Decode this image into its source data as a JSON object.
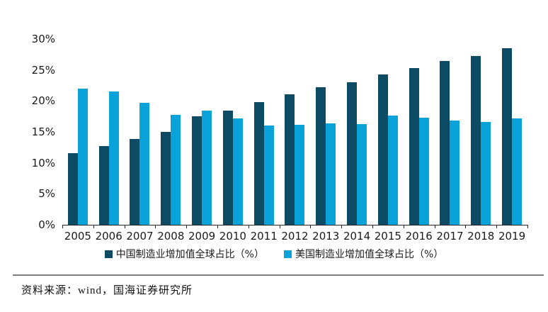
{
  "chart_data": {
    "type": "bar",
    "title": "",
    "xlabel": "",
    "ylabel": "",
    "categories": [
      "2005",
      "2006",
      "2007",
      "2008",
      "2009",
      "2010",
      "2011",
      "2012",
      "2013",
      "2014",
      "2015",
      "2016",
      "2017",
      "2018",
      "2019"
    ],
    "series": [
      {
        "id": "china",
        "name": "中国制造业增加值全球占比（%）",
        "color": "#0d4a63",
        "values": [
          11.6,
          12.7,
          13.8,
          15.0,
          17.5,
          18.4,
          19.8,
          21.1,
          22.2,
          23.0,
          24.3,
          25.3,
          26.5,
          27.2,
          28.5
        ]
      },
      {
        "id": "us",
        "name": "美国制造业增加值全球占比（%）",
        "color": "#0aa3d9",
        "values": [
          22.0,
          21.5,
          19.7,
          17.8,
          18.4,
          17.2,
          16.0,
          16.1,
          16.4,
          16.3,
          17.6,
          17.3,
          16.8,
          16.6,
          17.2
        ]
      }
    ],
    "ylim": [
      0,
      30
    ],
    "ytick_step": 5,
    "ytick_labels": [
      "0%",
      "5%",
      "10%",
      "15%",
      "20%",
      "25%",
      "30%"
    ],
    "grid": false,
    "legend_position": "bottom"
  },
  "footer": {
    "source_text": "资料来源：wind，国海证券研究所"
  }
}
